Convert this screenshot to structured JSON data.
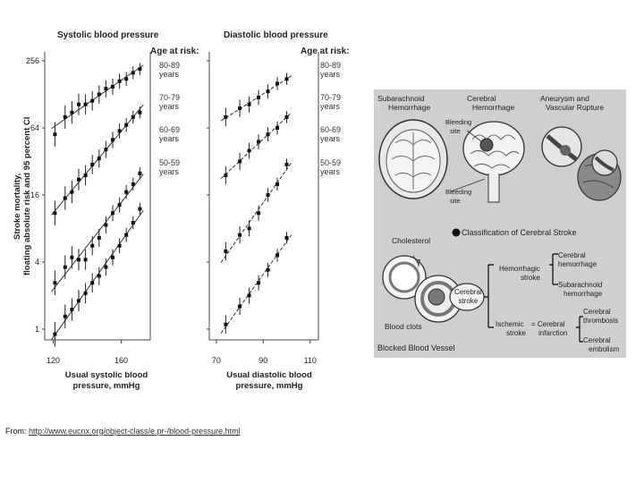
{
  "chart_data": [
    {
      "type": "scatter",
      "title": "Systolic blood pressure",
      "xlabel": "Usual systolic blood pressure, mmHg",
      "ylabel": "Stroke mortality, floating absolute risk and 95 percent CI",
      "xlim": [
        115,
        175
      ],
      "ylim": [
        0.8,
        256
      ],
      "yscale": "log2",
      "x_ticks": [
        "120",
        "160"
      ],
      "y_ticks": [
        "256",
        "64",
        "16",
        "4",
        "1"
      ],
      "legend_title": "Age at risk:",
      "series": [
        {
          "name": "80-89 years",
          "x": [
            121,
            127,
            131,
            135,
            139,
            143,
            147,
            151,
            155,
            159,
            163,
            167,
            171
          ],
          "y": [
            56,
            80,
            88,
            104,
            104,
            112,
            128,
            144,
            150,
            168,
            176,
            200,
            216
          ]
        },
        {
          "name": "70-79 years",
          "x": [
            121,
            127,
            131,
            135,
            139,
            143,
            147,
            151,
            155,
            159,
            163,
            167,
            171
          ],
          "y": [
            11,
            15,
            17,
            22,
            24,
            30,
            34,
            41,
            50,
            60,
            68,
            80,
            88
          ]
        },
        {
          "name": "60-69 years",
          "x": [
            121,
            127,
            131,
            135,
            139,
            143,
            147,
            151,
            155,
            159,
            163,
            167,
            171
          ],
          "y": [
            2.6,
            3.6,
            4.4,
            4.2,
            4.2,
            5.6,
            6.6,
            8.6,
            11,
            13,
            17,
            20,
            25
          ]
        },
        {
          "name": "50-59 years",
          "x": [
            121,
            127,
            131,
            135,
            139,
            143,
            147,
            151,
            155,
            159,
            163,
            167,
            171
          ],
          "y": [
            0.9,
            1.3,
            1.5,
            1.8,
            2.1,
            2.6,
            3.0,
            3.6,
            4.4,
            5.6,
            7.0,
            9.0,
            12
          ]
        }
      ]
    },
    {
      "type": "scatter",
      "title": "Diastolic blood pressure",
      "xlabel": "Usual diastolic blood pressure, mmHg",
      "ylabel": "",
      "xlim": [
        67,
        112
      ],
      "ylim": [
        0.8,
        256
      ],
      "yscale": "log2",
      "x_ticks": [
        "70",
        "90",
        "110"
      ],
      "legend_title": "Age at risk:",
      "series": [
        {
          "name": "80-89 years",
          "x": [
            74,
            80,
            84,
            88,
            92,
            96,
            100
          ],
          "y": [
            80,
            96,
            104,
            120,
            136,
            160,
            176
          ]
        },
        {
          "name": "70-79 years",
          "x": [
            74,
            80,
            84,
            88,
            92,
            96,
            100
          ],
          "y": [
            24,
            32,
            40,
            48,
            56,
            64,
            80
          ]
        },
        {
          "name": "60-69 years",
          "x": [
            74,
            80,
            84,
            88,
            92,
            96,
            100
          ],
          "y": [
            5.0,
            7.0,
            8.0,
            11,
            16,
            20,
            30
          ]
        },
        {
          "name": "50-59 years",
          "x": [
            74,
            80,
            84,
            88,
            92,
            96,
            100
          ],
          "y": [
            1.1,
            1.6,
            2.0,
            2.6,
            3.4,
            4.6,
            6.6
          ]
        }
      ]
    }
  ],
  "charts": {
    "systolic": {
      "title": "Systolic blood pressure",
      "ylabel_line1": "Stroke mortality,",
      "ylabel_line2": "floating absolute risk and 95 percent CI",
      "xlabel_line1": "Usual systolic blood",
      "xlabel_line2": "pressure, mmHg",
      "legend_title": "Age at risk:"
    },
    "diastolic": {
      "title": "Diastolic blood pressure",
      "xlabel_line1": "Usual diastolic blood",
      "xlabel_line2": "pressure, mmHg",
      "legend_title": "Age at risk:"
    },
    "age_groups": [
      {
        "line1": "80-89",
        "line2": "years"
      },
      {
        "line1": "70-79",
        "line2": "years"
      },
      {
        "line1": "60-69",
        "line2": "years"
      },
      {
        "line1": "50-59",
        "line2": "years"
      }
    ]
  },
  "illustration": {
    "subarachnoid": {
      "line1": "Subarachnoid",
      "line2": "Hemorrhage"
    },
    "cerebral_hem": {
      "line1": "Cerebral",
      "line2": "Hemorrhage"
    },
    "aneurysm": {
      "line1": "Aneurysm and",
      "line2": "Vascular Rupture"
    },
    "bleeding_site_1": {
      "line1": "Bleeding",
      "line2": "site"
    },
    "bleeding_site_2": {
      "line1": "Bleeding",
      "line2": "site"
    },
    "classification": "Classification of Cerebral Stroke",
    "cholesterol": "Cholesterol",
    "blood_clots": "Blood clots",
    "blocked_vessel": "Blocked Blood Vessel",
    "cerebral_stroke": {
      "line1": "Cerebral",
      "line2": "stroke"
    },
    "hemorrhagic": {
      "line1": "Hemorrhagic",
      "line2": "stroke"
    },
    "ischemic": {
      "line1": "Ischemic",
      "line2": "stroke"
    },
    "cerebral_infarction": {
      "line1": "= Cerebral",
      "line2": "infarction"
    },
    "cerebral_hemorrhage": {
      "line1": "Cerebral",
      "line2": "hemorrhage"
    },
    "subarachnoid_hemorrhage": {
      "line1": "Subarachnoid",
      "line2": "hemorrhage"
    },
    "cerebral_thrombosis": {
      "line1": "Cerebral",
      "line2": "thrombosis"
    },
    "cerebral_embolism": {
      "line1": "Cerebral",
      "line2": "embolism"
    }
  },
  "source": {
    "prefix": "From: ",
    "url": "http://www.eucnx.org/object-class/e.pr-/blood-pressure.html"
  },
  "colors": {
    "ink": "#222222",
    "illustration_bg": "#cfcfcf",
    "background": "#ffffff"
  }
}
